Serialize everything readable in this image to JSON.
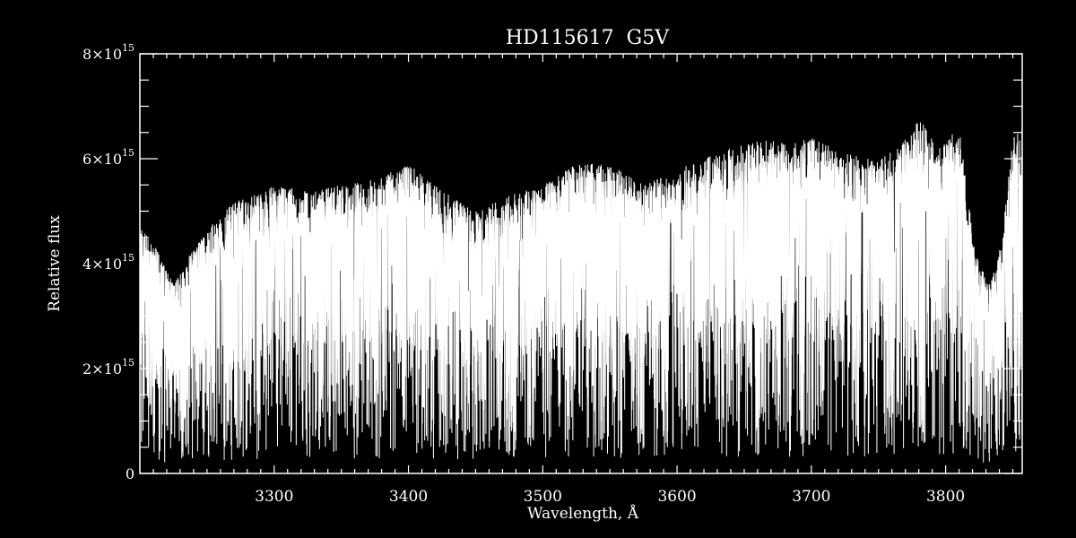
{
  "chart_data": {
    "type": "line",
    "title": "HD115617  G5V",
    "xlabel": "Wavelength, Å",
    "ylabel": "Relative flux",
    "xlim": [
      3200,
      3857
    ],
    "ylim": [
      0,
      8000000000000000.0
    ],
    "x_ticks": [
      3300,
      3400,
      3500,
      3600,
      3700,
      3800
    ],
    "x_tick_labels": [
      "3300",
      "3400",
      "3500",
      "3600",
      "3700",
      "3800"
    ],
    "y_ticks": [
      0,
      2000000000000000.0,
      4000000000000000.0,
      6000000000000000.0,
      8000000000000000.0
    ],
    "y_tick_labels": [
      {
        "mant": "0",
        "exp": ""
      },
      {
        "mant": "2×10",
        "exp": "15"
      },
      {
        "mant": "4×10",
        "exp": "15"
      },
      {
        "mant": "6×10",
        "exp": "15"
      },
      {
        "mant": "8×10",
        "exp": "15"
      }
    ],
    "grid": false,
    "line_color": "#ffffff",
    "background": "#000000",
    "continuum_envelope": {
      "x": [
        3200,
        3212,
        3225,
        3240,
        3255,
        3270,
        3285,
        3300,
        3325,
        3350,
        3375,
        3400,
        3425,
        3450,
        3475,
        3500,
        3525,
        3550,
        3575,
        3600,
        3630,
        3660,
        3680,
        3700,
        3725,
        3750,
        3765,
        3780,
        3795,
        3810,
        3822,
        3832,
        3842,
        3850,
        3857
      ],
      "y": [
        4700000000000000.0,
        4300000000000000.0,
        3600000000000000.0,
        4300000000000000.0,
        4800000000000000.0,
        5200000000000000.0,
        5300000000000000.0,
        5500000000000000.0,
        5400000000000000.0,
        5500000000000000.0,
        5600000000000000.0,
        5900000000000000.0,
        5400000000000000.0,
        5000000000000000.0,
        5300000000000000.0,
        5500000000000000.0,
        5900000000000000.0,
        5900000000000000.0,
        5500000000000000.0,
        5800000000000000.0,
        6100000000000000.0,
        6400000000000000.0,
        6300000000000000.0,
        6400000000000000.0,
        6100000000000000.0,
        6000000000000000.0,
        6200000000000000.0,
        6800000000000000.0,
        6200000000000000.0,
        6600000000000000.0,
        4200000000000000.0,
        3600000000000000.0,
        4500000000000000.0,
        6400000000000000.0,
        6600000000000000.0
      ]
    }
  }
}
